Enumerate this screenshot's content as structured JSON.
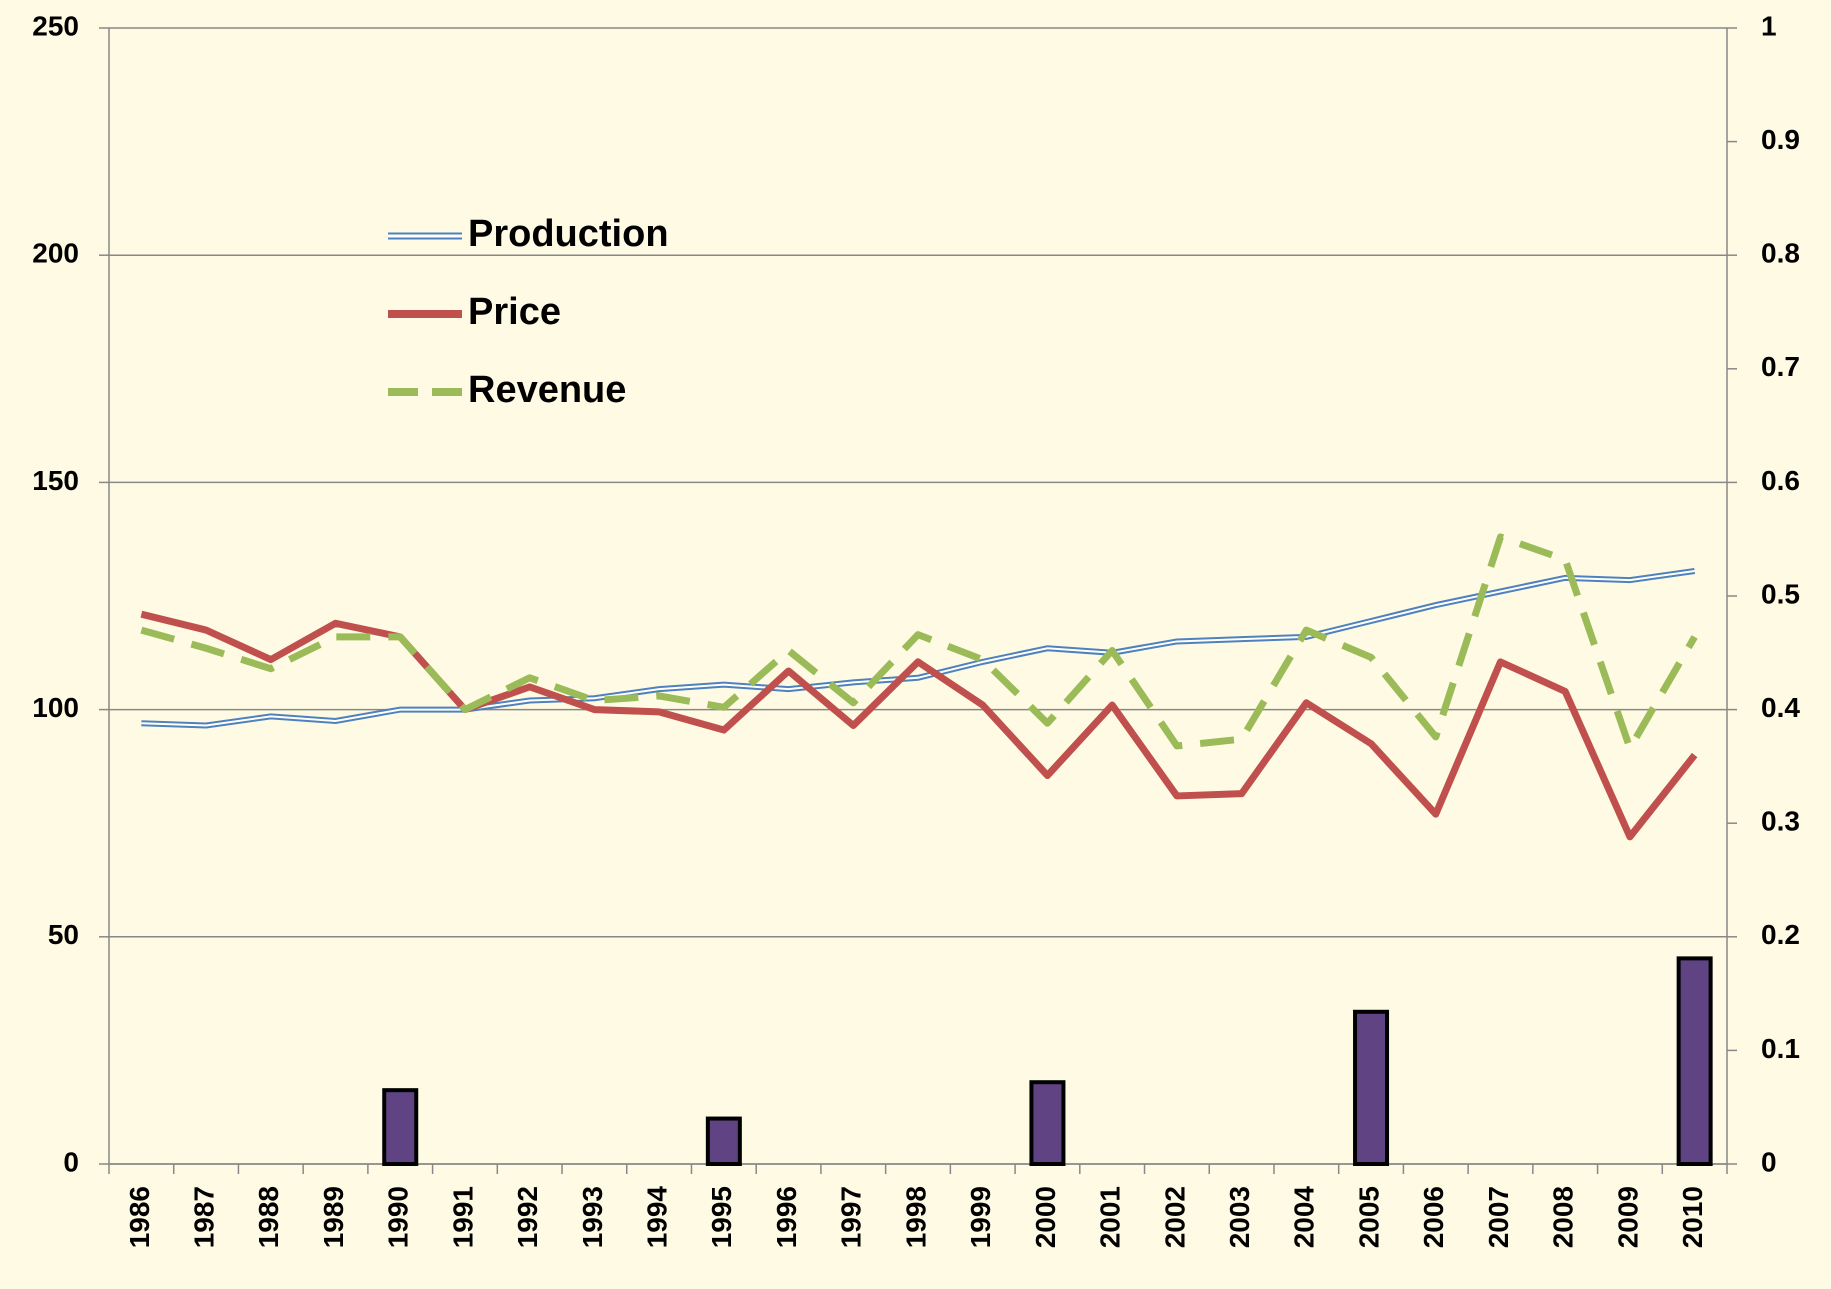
{
  "chart_data": {
    "type": "line",
    "categories": [
      "1986",
      "1987",
      "1988",
      "1989",
      "1990",
      "1991",
      "1992",
      "1993",
      "1994",
      "1995",
      "1996",
      "1997",
      "1998",
      "1999",
      "2000",
      "2001",
      "2002",
      "2003",
      "2004",
      "2005",
      "2006",
      "2007",
      "2008",
      "2009",
      "2010"
    ],
    "series": [
      {
        "name": "Production",
        "color": "#4f81bd",
        "style": "double",
        "values": [
          97,
          96.5,
          98.5,
          97.5,
          100,
          100,
          102,
          102.5,
          104.5,
          105.5,
          104.5,
          106,
          107,
          110.5,
          113.5,
          112.5,
          115,
          115.5,
          116,
          119.5,
          123,
          126,
          129,
          128.5,
          130.5
        ]
      },
      {
        "name": "Price",
        "color": "#c0504d",
        "style": "solid",
        "values": [
          121,
          117.5,
          111,
          119,
          116,
          100,
          105,
          100,
          99.5,
          95.5,
          108.5,
          96.5,
          110.5,
          101,
          85.5,
          101,
          81,
          81.5,
          101.5,
          92.5,
          77,
          110.5,
          104,
          72,
          90
        ]
      },
      {
        "name": "Revenue",
        "color": "#9bbb59",
        "style": "dashed",
        "values": [
          117.5,
          113.5,
          109,
          116,
          116,
          100,
          107,
          102,
          103,
          100.5,
          113,
          101.5,
          116.5,
          111,
          97,
          113,
          92,
          93.5,
          117.5,
          111.5,
          94,
          138,
          133,
          91.5,
          116
        ]
      },
      {
        "type": "bar",
        "axis": "y2",
        "color": "#5f4383",
        "values": [
          null,
          null,
          null,
          null,
          0.065,
          null,
          null,
          null,
          null,
          0.04,
          null,
          null,
          null,
          null,
          0.072,
          null,
          null,
          null,
          null,
          0.134,
          null,
          null,
          null,
          null,
          0.181
        ]
      }
    ],
    "ylim": [
      0,
      250
    ],
    "yticks": [
      0,
      50,
      100,
      150,
      200,
      250
    ],
    "y2lim": [
      0,
      1
    ],
    "y2ticks": [
      0,
      0.1,
      0.2,
      0.3,
      0.4,
      0.5,
      0.6,
      0.7,
      0.8,
      0.9,
      1
    ],
    "grid": true,
    "legend": "upper-left",
    "background": "#fffae3"
  }
}
